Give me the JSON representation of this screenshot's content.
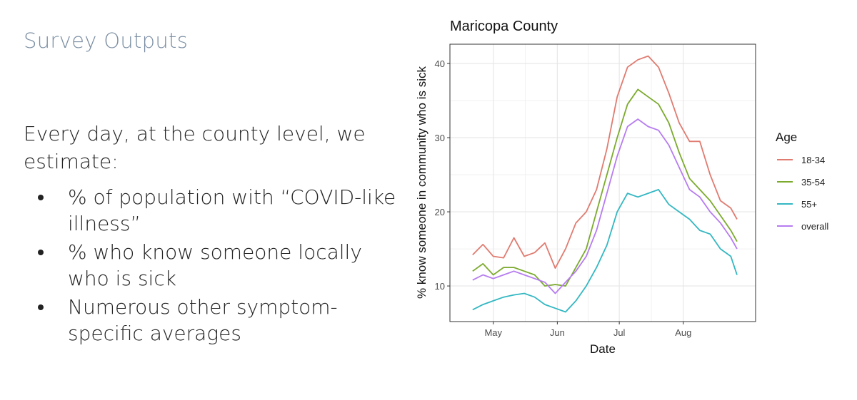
{
  "slide": {
    "title": "Survey Outputs",
    "intro": "Every day, at the county level, we estimate:",
    "bullets": [
      "% of population with “COVID-like illness”",
      "% who know someone locally who is sick",
      "Numerous other symptom-specific averages"
    ]
  },
  "chart_data": {
    "type": "line",
    "title": "Maricopa County",
    "xlabel": "Date",
    "ylabel": "% know someone in community who is sick",
    "x_ticks": [
      {
        "label": "May",
        "date": "2020-05-01"
      },
      {
        "label": "Jun",
        "date": "2020-06-01"
      },
      {
        "label": "Jul",
        "date": "2020-07-01"
      },
      {
        "label": "Aug",
        "date": "2020-08-01"
      }
    ],
    "y_ticks": [
      10,
      20,
      30,
      40
    ],
    "xlim": [
      "2020-04-10",
      "2020-09-05"
    ],
    "ylim": [
      5.2,
      42.6
    ],
    "grid": true,
    "legend": {
      "title": "Age",
      "position": "right"
    },
    "x": [
      "2020-04-21",
      "2020-04-26",
      "2020-05-01",
      "2020-05-06",
      "2020-05-11",
      "2020-05-16",
      "2020-05-21",
      "2020-05-26",
      "2020-05-31",
      "2020-06-05",
      "2020-06-10",
      "2020-06-15",
      "2020-06-20",
      "2020-06-25",
      "2020-06-30",
      "2020-07-05",
      "2020-07-10",
      "2020-07-15",
      "2020-07-20",
      "2020-07-25",
      "2020-07-30",
      "2020-08-04",
      "2020-08-09",
      "2020-08-14",
      "2020-08-19",
      "2020-08-24",
      "2020-08-27"
    ],
    "series": [
      {
        "name": "18-34",
        "color": "#e07b70",
        "values": [
          14.2,
          15.6,
          14.0,
          13.8,
          16.5,
          14.0,
          14.5,
          15.8,
          12.4,
          15.0,
          18.5,
          20.0,
          23.0,
          28.5,
          35.5,
          39.5,
          40.5,
          41.0,
          39.5,
          36.0,
          32.0,
          29.5,
          29.5,
          25.0,
          21.5,
          20.5,
          19.0
        ]
      },
      {
        "name": "35-54",
        "color": "#7caa2e",
        "values": [
          12.0,
          13.0,
          11.5,
          12.5,
          12.5,
          12.0,
          11.5,
          10.0,
          10.2,
          10.0,
          12.5,
          15.0,
          20.0,
          25.0,
          30.0,
          34.5,
          36.5,
          35.5,
          34.5,
          32.0,
          28.0,
          24.5,
          23.0,
          21.5,
          19.5,
          17.5,
          16.0
        ]
      },
      {
        "name": "55+",
        "color": "#33b7c2",
        "values": [
          6.8,
          7.5,
          8.0,
          8.5,
          8.8,
          9.0,
          8.5,
          7.5,
          7.0,
          6.5,
          8.0,
          10.0,
          12.5,
          15.5,
          20.0,
          22.5,
          22.0,
          22.5,
          23.0,
          21.0,
          20.0,
          19.0,
          17.5,
          17.0,
          15.0,
          14.0,
          11.5
        ]
      },
      {
        "name": "overall",
        "color": "#b67cf0",
        "values": [
          10.8,
          11.5,
          11.0,
          11.5,
          12.0,
          11.5,
          11.0,
          10.5,
          9.0,
          10.5,
          12.0,
          14.0,
          17.5,
          22.5,
          27.5,
          31.5,
          32.5,
          31.5,
          31.0,
          29.0,
          26.0,
          23.0,
          22.0,
          20.0,
          18.5,
          16.5,
          15.0
        ]
      }
    ]
  }
}
